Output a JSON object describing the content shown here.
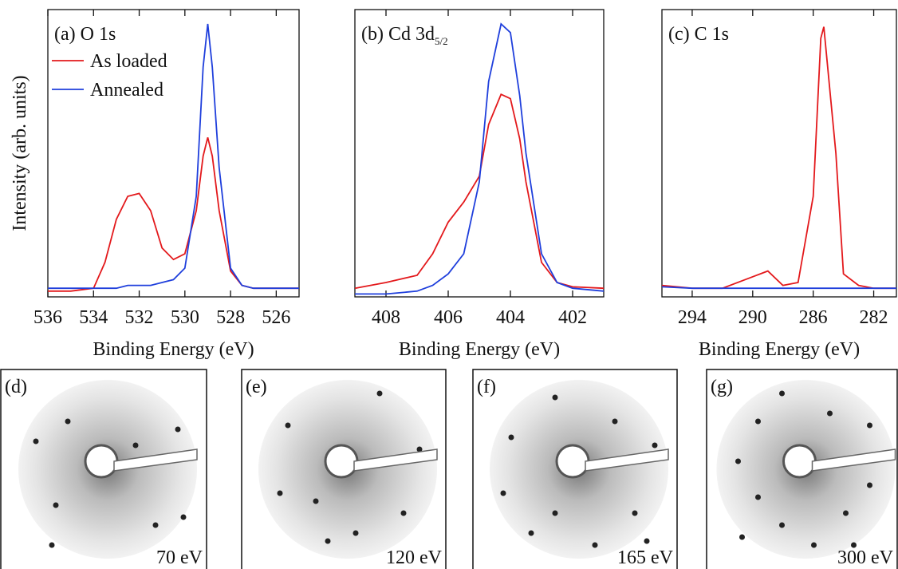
{
  "chart_data": [
    {
      "type": "line",
      "title": "(a) O 1s",
      "x_label": "Binding Energy (eV)",
      "y_label": "Intensity (arb. units)",
      "xlim": [
        536,
        525
      ],
      "xticks": [
        536,
        534,
        532,
        530,
        528,
        526
      ],
      "ylim": [
        0,
        1
      ],
      "legend": "upper left",
      "x": [
        536,
        535,
        534,
        533.5,
        533,
        532.5,
        532,
        531.5,
        531,
        530.5,
        530,
        529.5,
        529.2,
        529,
        528.8,
        528.5,
        528,
        527.5,
        527,
        526,
        525
      ],
      "series": [
        {
          "name": "As loaded",
          "color": "#e3191c",
          "values": [
            0.02,
            0.02,
            0.03,
            0.12,
            0.27,
            0.35,
            0.36,
            0.3,
            0.17,
            0.13,
            0.15,
            0.3,
            0.49,
            0.555,
            0.49,
            0.3,
            0.09,
            0.04,
            0.03,
            0.03,
            0.03
          ]
        },
        {
          "name": "Annealed",
          "color": "#1f3fdc",
          "values": [
            0.03,
            0.03,
            0.03,
            0.03,
            0.03,
            0.04,
            0.04,
            0.04,
            0.05,
            0.06,
            0.1,
            0.35,
            0.8,
            0.95,
            0.8,
            0.45,
            0.1,
            0.04,
            0.03,
            0.03,
            0.03
          ]
        }
      ]
    },
    {
      "type": "line",
      "title": "(b) Cd 3d",
      "title_sub": "5/2",
      "x_label": "Binding Energy (eV)",
      "xlim": [
        409,
        401
      ],
      "xticks": [
        408,
        406,
        404,
        402
      ],
      "ylim": [
        0,
        1
      ],
      "x": [
        409,
        408,
        407,
        406.5,
        406,
        405.5,
        405,
        404.7,
        404.3,
        404,
        403.7,
        403.5,
        403,
        402.5,
        402,
        401
      ],
      "series": [
        {
          "color": "#e3191c",
          "values": [
            0.03,
            0.05,
            0.075,
            0.15,
            0.26,
            0.33,
            0.42,
            0.6,
            0.705,
            0.69,
            0.55,
            0.4,
            0.12,
            0.05,
            0.035,
            0.03
          ]
        },
        {
          "color": "#1f3fdc",
          "values": [
            0.01,
            0.01,
            0.02,
            0.04,
            0.08,
            0.15,
            0.4,
            0.75,
            0.95,
            0.92,
            0.7,
            0.5,
            0.15,
            0.05,
            0.03,
            0.02
          ]
        }
      ]
    },
    {
      "type": "line",
      "title": "(c) C 1s",
      "x_label": "Binding Energy (eV)",
      "xlim": [
        296,
        280.5
      ],
      "xticks": [
        294,
        290,
        286,
        282
      ],
      "ylim": [
        0,
        1
      ],
      "x": [
        296,
        294,
        292,
        290,
        289,
        288,
        287,
        286,
        285.5,
        285.3,
        284.5,
        284,
        283,
        282,
        280.5
      ],
      "series": [
        {
          "color": "#e3191c",
          "values": [
            0.04,
            0.03,
            0.03,
            0.07,
            0.09,
            0.04,
            0.05,
            0.35,
            0.9,
            0.94,
            0.5,
            0.08,
            0.04,
            0.03,
            0.03
          ]
        },
        {
          "color": "#1f3fdc",
          "values": [
            0.035,
            0.03,
            0.03,
            0.03,
            0.03,
            0.03,
            0.03,
            0.03,
            0.03,
            0.03,
            0.03,
            0.03,
            0.03,
            0.03,
            0.03
          ]
        }
      ]
    }
  ],
  "images": [
    {
      "label": "(d)",
      "energy": "70 eV"
    },
    {
      "label": "(e)",
      "energy": "120 eV"
    },
    {
      "label": "(f)",
      "energy": "165 eV"
    },
    {
      "label": "(g)",
      "energy": "300 eV"
    }
  ]
}
